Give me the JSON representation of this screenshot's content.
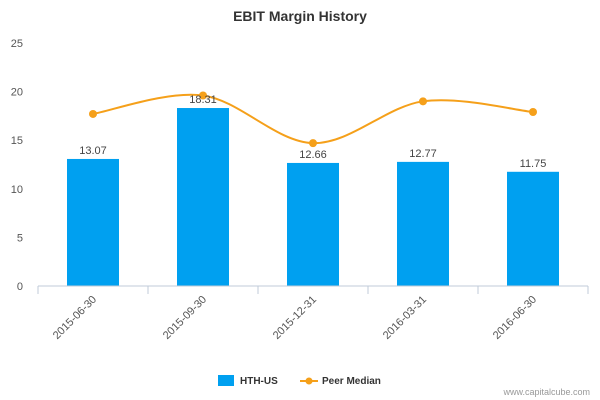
{
  "chart_data": {
    "type": "bar",
    "title": "EBIT Margin History",
    "xlabel": "",
    "ylabel": "",
    "categories": [
      "2015-06-30",
      "2015-09-30",
      "2015-12-31",
      "2016-03-31",
      "2016-06-30"
    ],
    "series": [
      {
        "name": "HTH-US",
        "type": "bar",
        "color": "#00a0f0",
        "values": [
          13.07,
          18.31,
          12.66,
          12.77,
          11.75
        ]
      },
      {
        "name": "Peer Median",
        "type": "line",
        "color": "#f5a01a",
        "values": [
          17.7,
          19.6,
          14.7,
          19.0,
          17.9
        ]
      }
    ],
    "data_labels": [
      "13.07",
      "18.31",
      "12.66",
      "12.77",
      "11.75"
    ],
    "ylim": [
      0,
      25
    ],
    "yticks": [
      0,
      5,
      10,
      15,
      20,
      25
    ],
    "grid": false,
    "legend": "bottom"
  },
  "credit": "www.capitalcube.com"
}
